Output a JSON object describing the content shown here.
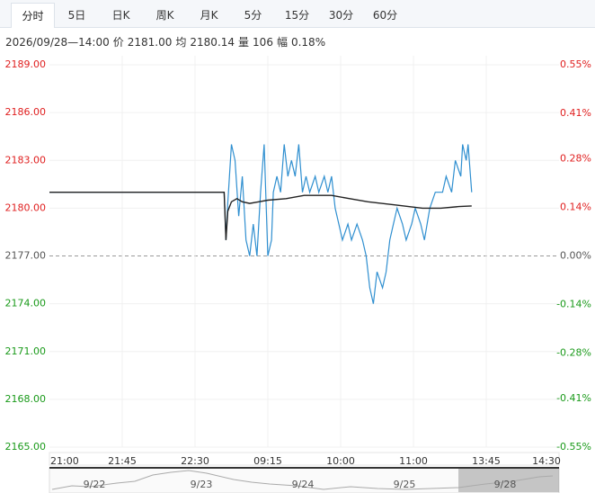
{
  "header": {
    "tabs": [
      "分时",
      "5日",
      "日K",
      "周K",
      "月K",
      "5分",
      "15分",
      "30分",
      "60分"
    ],
    "active_tab": 0,
    "info": [
      "2026/09/28—14:00",
      "价",
      "2181.00",
      "均",
      "2180.14",
      "量",
      "106",
      "幅",
      "0.18%"
    ]
  },
  "chart_data": {
    "type": "line",
    "baseline": 2177,
    "xlim": [
      0,
      280
    ],
    "xticks": [
      {
        "value": 0,
        "label": "21:00"
      },
      {
        "value": 40,
        "label": "21:45"
      },
      {
        "value": 80,
        "label": "22:30"
      },
      {
        "value": 120,
        "label": "09:15"
      },
      {
        "value": 160,
        "label": "10:00"
      },
      {
        "value": 200,
        "label": "11:00"
      },
      {
        "value": 240,
        "label": "13:45"
      },
      {
        "value": 280,
        "label": "14:30"
      }
    ],
    "ylim": [
      2165,
      2189
    ],
    "yticks": [
      {
        "value": 2165,
        "label": "2165.00"
      },
      {
        "value": 2168,
        "label": "2168.00"
      },
      {
        "value": 2171,
        "label": "2171.00"
      },
      {
        "value": 2174,
        "label": "2174.00"
      },
      {
        "value": 2177,
        "label": "2177.00"
      },
      {
        "value": 2180,
        "label": "2180.00"
      },
      {
        "value": 2183,
        "label": "2183.00"
      },
      {
        "value": 2186,
        "label": "2186.00"
      },
      {
        "value": 2189,
        "label": "2189.00"
      }
    ],
    "y2lim": [
      -0.55,
      0.55
    ],
    "y2ticks": [
      {
        "value": -0.55,
        "label": "-0.55%"
      },
      {
        "value": -0.41,
        "label": "-0.41%"
      },
      {
        "value": -0.28,
        "label": "-0.28%"
      },
      {
        "value": -0.14,
        "label": "-0.14%"
      },
      {
        "value": 0,
        "label": "0.00%"
      },
      {
        "value": 0.14,
        "label": "0.14%"
      },
      {
        "value": 0.28,
        "label": "0.28%"
      },
      {
        "value": 0.41,
        "label": "0.41%"
      },
      {
        "value": 0.55,
        "label": "0.55%"
      }
    ],
    "grid": true,
    "series": [
      {
        "color": "#2f8fd0",
        "x": [
          0,
          96,
          97,
          98,
          100,
          102,
          104,
          106,
          108,
          110,
          112,
          114,
          116,
          118,
          120,
          122,
          123,
          125,
          127,
          129,
          131,
          133,
          135,
          137,
          139,
          141,
          143,
          146,
          148,
          151,
          153,
          155,
          157,
          159,
          161,
          164,
          166,
          169,
          172,
          174,
          176,
          178,
          180,
          183,
          185,
          187,
          189,
          191,
          194,
          196,
          199,
          201,
          204,
          206,
          209,
          212,
          216,
          218,
          221,
          223,
          226,
          227,
          229,
          230,
          232
        ],
        "values": [
          2181,
          2181,
          2178,
          2180.3,
          2184,
          2183,
          2179.5,
          2182,
          2178,
          2177,
          2179,
          2177,
          2181,
          2184,
          2177,
          2178,
          2181,
          2182,
          2181,
          2184,
          2182,
          2183,
          2182,
          2184,
          2181,
          2182,
          2181,
          2182,
          2181,
          2182,
          2181,
          2182,
          2180,
          2179,
          2178,
          2179,
          2178,
          2179,
          2178,
          2177,
          2175,
          2174,
          2176,
          2175,
          2176,
          2178,
          2179,
          2180,
          2179,
          2178,
          2179,
          2180,
          2179,
          2178,
          2180,
          2181,
          2181,
          2182,
          2181,
          2183,
          2182,
          2184,
          2183,
          2184,
          2181
        ]
      },
      {
        "color": "#222222",
        "x": [
          0,
          96,
          97,
          98,
          100,
          103,
          106,
          110,
          115,
          120,
          130,
          140,
          155,
          165,
          175,
          190,
          205,
          215,
          225,
          232
        ],
        "values": [
          2181,
          2181,
          2178,
          2179.8,
          2180.4,
          2180.6,
          2180.4,
          2180.3,
          2180.4,
          2180.5,
          2180.6,
          2180.8,
          2180.8,
          2180.6,
          2180.4,
          2180.2,
          2180.0,
          2180.0,
          2180.1,
          2180.14
        ]
      }
    ],
    "navigator": {
      "labels": [
        "9/22",
        "9/23",
        "9/24",
        "9/25",
        "9/28"
      ]
    }
  }
}
